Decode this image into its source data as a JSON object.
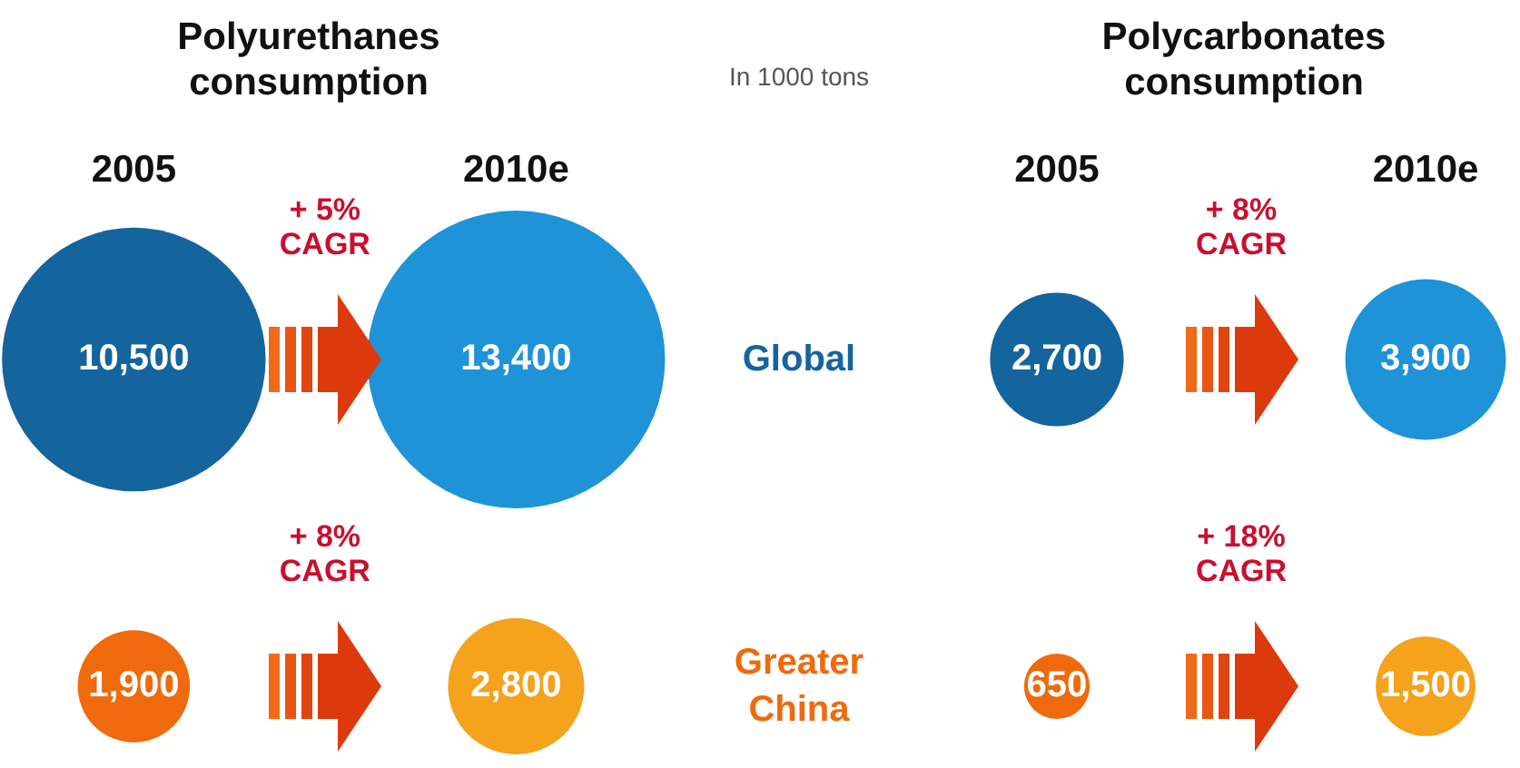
{
  "chart_data": [
    {
      "type": "other",
      "title": "Polyurethanes consumption",
      "subtitle": "In 1000 tons",
      "categories": [
        "2005",
        "2010e"
      ],
      "series": [
        {
          "name": "Global",
          "colors": [
            "#14649e",
            "#1f93d8"
          ],
          "values": [
            10500,
            13400
          ],
          "value_labels": [
            "10,500",
            "13,400"
          ]
        },
        {
          "name": "Greater China",
          "colors": [
            "#ef6a0c",
            "#f5a21c"
          ],
          "values": [
            1900,
            2800
          ],
          "value_labels": [
            "1,900",
            "2,800"
          ]
        }
      ],
      "annotations": [
        "+ 5% CAGR",
        "+ 8% CAGR"
      ]
    },
    {
      "type": "other",
      "title": "Polycarbonates consumption",
      "categories": [
        "2005",
        "2010e"
      ],
      "series": [
        {
          "colors": [
            "#14649e",
            "#1f93d8"
          ],
          "values": [
            2700,
            3900
          ],
          "value_labels": [
            "2,700",
            "3,900"
          ]
        },
        {
          "colors": [
            "#ef6a0c",
            "#f5a21c"
          ],
          "values": [
            650,
            1500
          ],
          "value_labels": [
            "650",
            "1,500"
          ]
        }
      ],
      "annotations": [
        "+ 8% CAGR",
        "+ 18% CAGR"
      ]
    }
  ]
}
